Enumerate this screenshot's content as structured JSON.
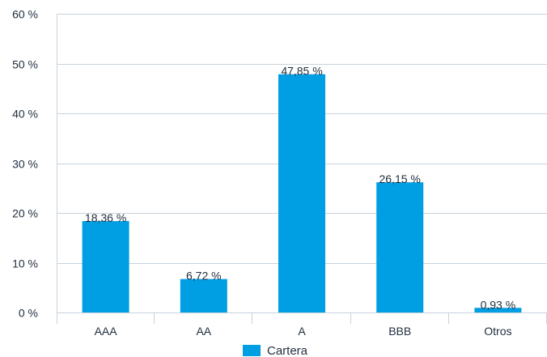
{
  "chart_data": {
    "type": "bar",
    "categories": [
      "AAA",
      "AA",
      "A",
      "BBB",
      "Otros"
    ],
    "series": [
      {
        "name": "Cartera",
        "values": [
          18.36,
          6.72,
          47.85,
          26.15,
          0.93
        ],
        "value_labels": [
          "18,36 %",
          "6,72 %",
          "47,85 %",
          "26,15 %",
          "0,93 %"
        ],
        "color": "#009fe3"
      }
    ],
    "yticks": [
      0,
      10,
      20,
      30,
      40,
      50,
      60
    ],
    "ytick_labels": [
      "0 %",
      "10 %",
      "20 %",
      "30 %",
      "40 %",
      "50 %",
      "60 %"
    ],
    "ylim": [
      0,
      60
    ],
    "grid": true,
    "legend": "bottom-center"
  },
  "colors": {
    "bar": "#009fe3",
    "grid": "#c8d3dc",
    "text": "#1f2d3d"
  }
}
